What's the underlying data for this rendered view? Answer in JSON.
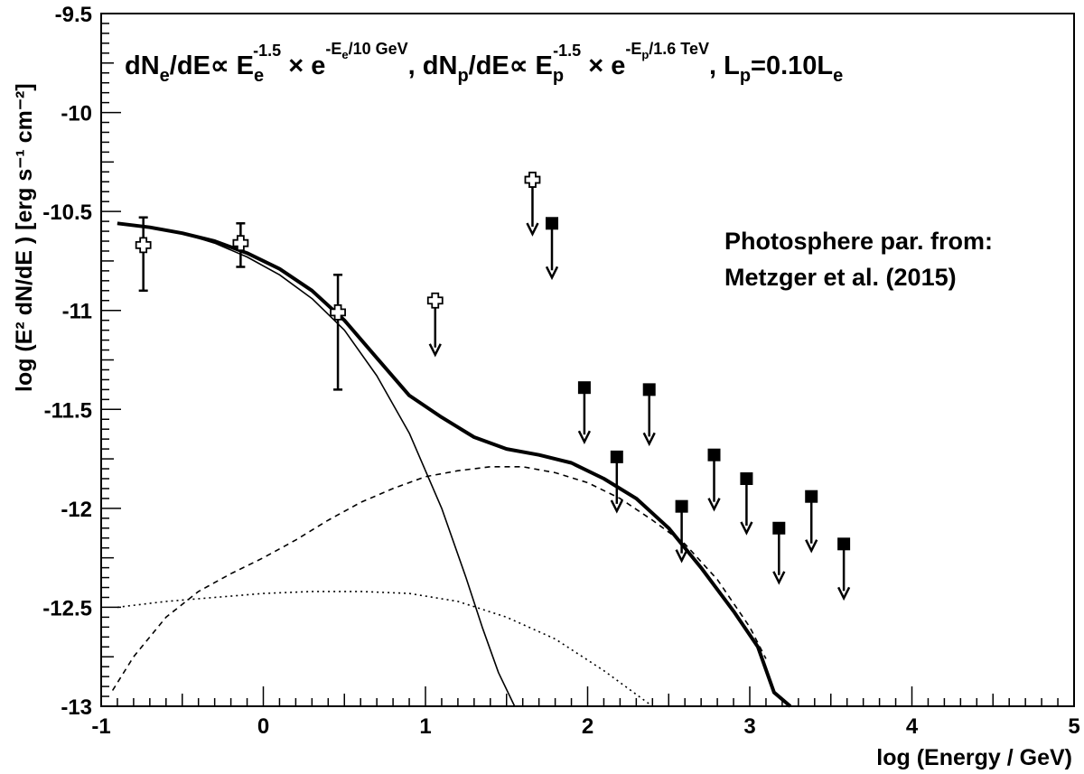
{
  "chart_data": {
    "type": "line",
    "xlabel": "log (Energy / GeV)",
    "ylabel": "log (E² dN/dE ) [erg s⁻¹ cm⁻²]",
    "xlim": [
      -1,
      5
    ],
    "ylim": [
      -13,
      -9.5
    ],
    "x_ticks": [
      "-1",
      "0",
      "1",
      "2",
      "3",
      "4",
      "5"
    ],
    "y_ticks": [
      "-9.5",
      "-10",
      "-10.5",
      "-11",
      "-11.5",
      "-12",
      "-12.5",
      "-13"
    ],
    "formula": {
      "part1": "dN",
      "part1_sub": "e",
      "part2": "/dE∝ E",
      "part2_sub": "e",
      "part2_sup": "-1.5",
      "part3": " × e",
      "part3_sup": "-E",
      "part3_sup_sub": "e",
      "part3_sup_tail": "/10 GeV",
      "part4": ", dN",
      "part4_sub": "p",
      "part5": "/dE∝ E",
      "part5_sub": "p",
      "part5_sup": "-1.5",
      "part6": " × e",
      "part6_sup": "-E",
      "part6_sup_sub": "p",
      "part6_sup_tail": "/1.6 TeV",
      "part7": ", L",
      "part7_sub": "p",
      "part8": "=0.10L",
      "part8_sub": "e"
    },
    "annotation_line1": "Photosphere par. from:",
    "annotation_line2": "Metzger et al. (2015)",
    "series": [
      {
        "style": "thick-solid",
        "x": [
          -0.9,
          -0.7,
          -0.5,
          -0.3,
          -0.1,
          0.1,
          0.3,
          0.5,
          0.7,
          0.9,
          1.1,
          1.3,
          1.5,
          1.7,
          1.9,
          2.1,
          2.3,
          2.5,
          2.7,
          2.9,
          3.05,
          3.15,
          3.25
        ],
        "y": [
          -10.56,
          -10.58,
          -10.61,
          -10.65,
          -10.71,
          -10.79,
          -10.9,
          -11.05,
          -11.24,
          -11.43,
          -11.54,
          -11.64,
          -11.7,
          -11.73,
          -11.77,
          -11.85,
          -11.95,
          -12.1,
          -12.3,
          -12.52,
          -12.7,
          -12.93,
          -13.0
        ]
      },
      {
        "style": "thin-solid",
        "x": [
          -0.9,
          -0.7,
          -0.5,
          -0.3,
          -0.1,
          0.1,
          0.3,
          0.5,
          0.7,
          0.9,
          1.1,
          1.25,
          1.35,
          1.45,
          1.55
        ],
        "y": [
          -10.56,
          -10.58,
          -10.61,
          -10.66,
          -10.73,
          -10.82,
          -10.94,
          -11.1,
          -11.33,
          -11.62,
          -12.0,
          -12.35,
          -12.6,
          -12.83,
          -13.0
        ]
      },
      {
        "style": "dashed",
        "x": [
          -0.93,
          -0.8,
          -0.6,
          -0.4,
          -0.2,
          0.0,
          0.2,
          0.4,
          0.6,
          0.8,
          1.0,
          1.2,
          1.4,
          1.6,
          1.8,
          2.0,
          2.2,
          2.4,
          2.6,
          2.8,
          3.0,
          3.1
        ],
        "y": [
          -12.92,
          -12.75,
          -12.55,
          -12.42,
          -12.33,
          -12.25,
          -12.16,
          -12.06,
          -11.97,
          -11.9,
          -11.84,
          -11.81,
          -11.79,
          -11.79,
          -11.82,
          -11.87,
          -11.95,
          -12.06,
          -12.18,
          -12.36,
          -12.6,
          -12.76
        ]
      },
      {
        "style": "dotted",
        "x": [
          -0.9,
          -0.6,
          -0.3,
          0.0,
          0.3,
          0.6,
          0.9,
          1.2,
          1.5,
          1.8,
          2.1,
          2.4
        ],
        "y": [
          -12.5,
          -12.47,
          -12.45,
          -12.43,
          -12.42,
          -12.42,
          -12.43,
          -12.47,
          -12.55,
          -12.66,
          -12.82,
          -13.0
        ]
      }
    ],
    "points_open_cross": [
      {
        "x": -0.74,
        "y": -10.67,
        "err_low": -10.9,
        "err_high": -10.53
      },
      {
        "x": -0.14,
        "y": -10.66,
        "err_low": -10.78,
        "err_high": -10.56
      },
      {
        "x": 0.46,
        "y": -11.01,
        "err_low": -11.4,
        "err_high": -10.82
      }
    ],
    "ul_open_cross": [
      {
        "x": 1.06,
        "y": -10.95
      },
      {
        "x": 1.66,
        "y": -10.34
      }
    ],
    "ul_filled_square": [
      {
        "x": 1.78,
        "y": -10.56
      },
      {
        "x": 1.98,
        "y": -11.39
      },
      {
        "x": 2.18,
        "y": -11.74
      },
      {
        "x": 2.38,
        "y": -11.4
      },
      {
        "x": 2.58,
        "y": -11.99
      },
      {
        "x": 2.78,
        "y": -11.73
      },
      {
        "x": 2.98,
        "y": -11.85
      },
      {
        "x": 3.18,
        "y": -12.1
      },
      {
        "x": 3.38,
        "y": -11.94
      },
      {
        "x": 3.58,
        "y": -12.18
      }
    ]
  }
}
